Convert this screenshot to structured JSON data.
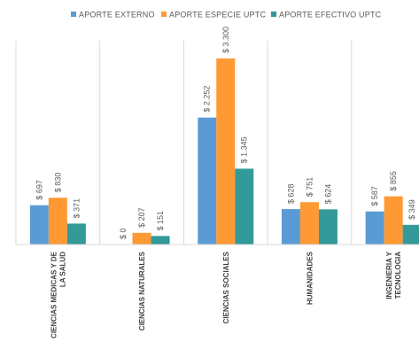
{
  "chart_data": {
    "type": "bar",
    "categories": [
      [
        "CIENCIAS MEDICAS Y DE",
        "LA SALUD"
      ],
      [
        "CIENCIAS NATURALES"
      ],
      [
        "CIENCIAS SOCIALES"
      ],
      [
        "HUMANIDADES"
      ],
      [
        "INGENIERIA Y",
        "TECNOLOGIA"
      ]
    ],
    "series": [
      {
        "name": "APORTE EXTERNO",
        "color": "#5B9BD5",
        "values": [
          697,
          0,
          2252,
          628,
          587
        ],
        "labels": [
          "$ 697",
          "$ 0",
          "$ 2.252",
          "$ 628",
          "$ 587"
        ]
      },
      {
        "name": "APORTE ESPECIE UPTC",
        "color": "#FF9933",
        "values": [
          830,
          207,
          3300,
          751,
          855
        ],
        "labels": [
          "$ 830",
          "$ 207",
          "$ 3.300",
          "$ 751",
          "$ 855"
        ]
      },
      {
        "name": "APORTE EFECTIVO UPTC",
        "color": "#339999",
        "values": [
          371,
          151,
          1345,
          624,
          349
        ],
        "labels": [
          "$ 371",
          "$ 151",
          "$ 1.345",
          "$ 624",
          "$ 349"
        ]
      }
    ],
    "ylim": [
      0,
      3300
    ],
    "grid": false,
    "legend": "top"
  }
}
